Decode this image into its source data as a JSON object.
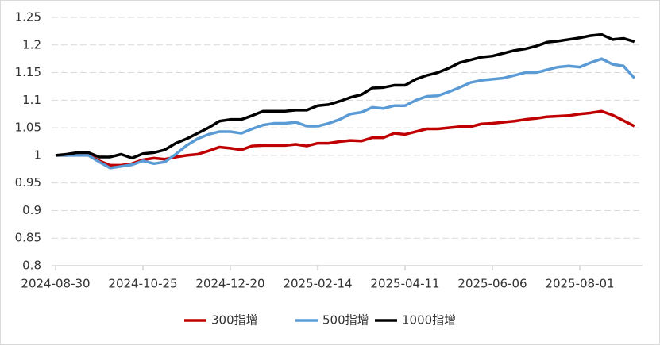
{
  "chart_data": {
    "type": "line",
    "categories": [
      "2024-08-30",
      null,
      null,
      null,
      null,
      null,
      null,
      null,
      "2024-10-25",
      null,
      null,
      null,
      null,
      null,
      null,
      null,
      "2024-12-20",
      null,
      null,
      null,
      null,
      null,
      null,
      null,
      "2025-02-14",
      null,
      null,
      null,
      null,
      null,
      null,
      null,
      "2025-04-11",
      null,
      null,
      null,
      null,
      null,
      null,
      null,
      "2025-06-06",
      null,
      null,
      null,
      null,
      null,
      null,
      null,
      "2025-08-01",
      null,
      null,
      null,
      null,
      null
    ],
    "ylim": [
      0.8,
      1.25
    ],
    "yticks": [
      0.8,
      0.85,
      0.9,
      0.95,
      1,
      1.05,
      1.1,
      1.15,
      1.2,
      1.25
    ],
    "grid": true,
    "legend": "bottom",
    "series": [
      {
        "name": "300指增",
        "color": "#c00000",
        "values": [
          1.0,
          1.0,
          1.002,
          1.002,
          0.99,
          0.982,
          0.982,
          0.985,
          0.992,
          0.995,
          0.993,
          0.997,
          1.0,
          1.002,
          1.008,
          1.015,
          1.013,
          1.01,
          1.017,
          1.018,
          1.018,
          1.018,
          1.02,
          1.017,
          1.022,
          1.022,
          1.025,
          1.027,
          1.026,
          1.032,
          1.032,
          1.04,
          1.038,
          1.043,
          1.048,
          1.048,
          1.05,
          1.052,
          1.052,
          1.057,
          1.058,
          1.06,
          1.062,
          1.065,
          1.067,
          1.07,
          1.071,
          1.072,
          1.075,
          1.077,
          1.08,
          1.073,
          1.063,
          1.053
        ]
      },
      {
        "name": "500指增",
        "color": "#5b9bd5",
        "values": [
          1.0,
          1.0,
          1.0,
          1.0,
          0.988,
          0.977,
          0.98,
          0.983,
          0.99,
          0.985,
          0.988,
          1.002,
          1.018,
          1.03,
          1.038,
          1.043,
          1.043,
          1.04,
          1.048,
          1.055,
          1.058,
          1.058,
          1.06,
          1.053,
          1.053,
          1.058,
          1.065,
          1.075,
          1.078,
          1.087,
          1.085,
          1.09,
          1.09,
          1.1,
          1.107,
          1.108,
          1.115,
          1.123,
          1.132,
          1.136,
          1.138,
          1.14,
          1.145,
          1.15,
          1.15,
          1.155,
          1.16,
          1.162,
          1.16,
          1.168,
          1.175,
          1.165,
          1.162,
          1.14
        ]
      },
      {
        "name": "1000指增",
        "color": "#000000",
        "values": [
          1.0,
          1.002,
          1.005,
          1.005,
          0.997,
          0.997,
          1.002,
          0.995,
          1.003,
          1.005,
          1.01,
          1.022,
          1.03,
          1.04,
          1.05,
          1.062,
          1.065,
          1.065,
          1.072,
          1.08,
          1.08,
          1.08,
          1.082,
          1.082,
          1.09,
          1.092,
          1.098,
          1.105,
          1.11,
          1.122,
          1.123,
          1.127,
          1.127,
          1.138,
          1.145,
          1.15,
          1.158,
          1.168,
          1.173,
          1.178,
          1.18,
          1.185,
          1.19,
          1.193,
          1.198,
          1.205,
          1.207,
          1.21,
          1.213,
          1.217,
          1.219,
          1.21,
          1.212,
          1.206
        ]
      }
    ]
  }
}
